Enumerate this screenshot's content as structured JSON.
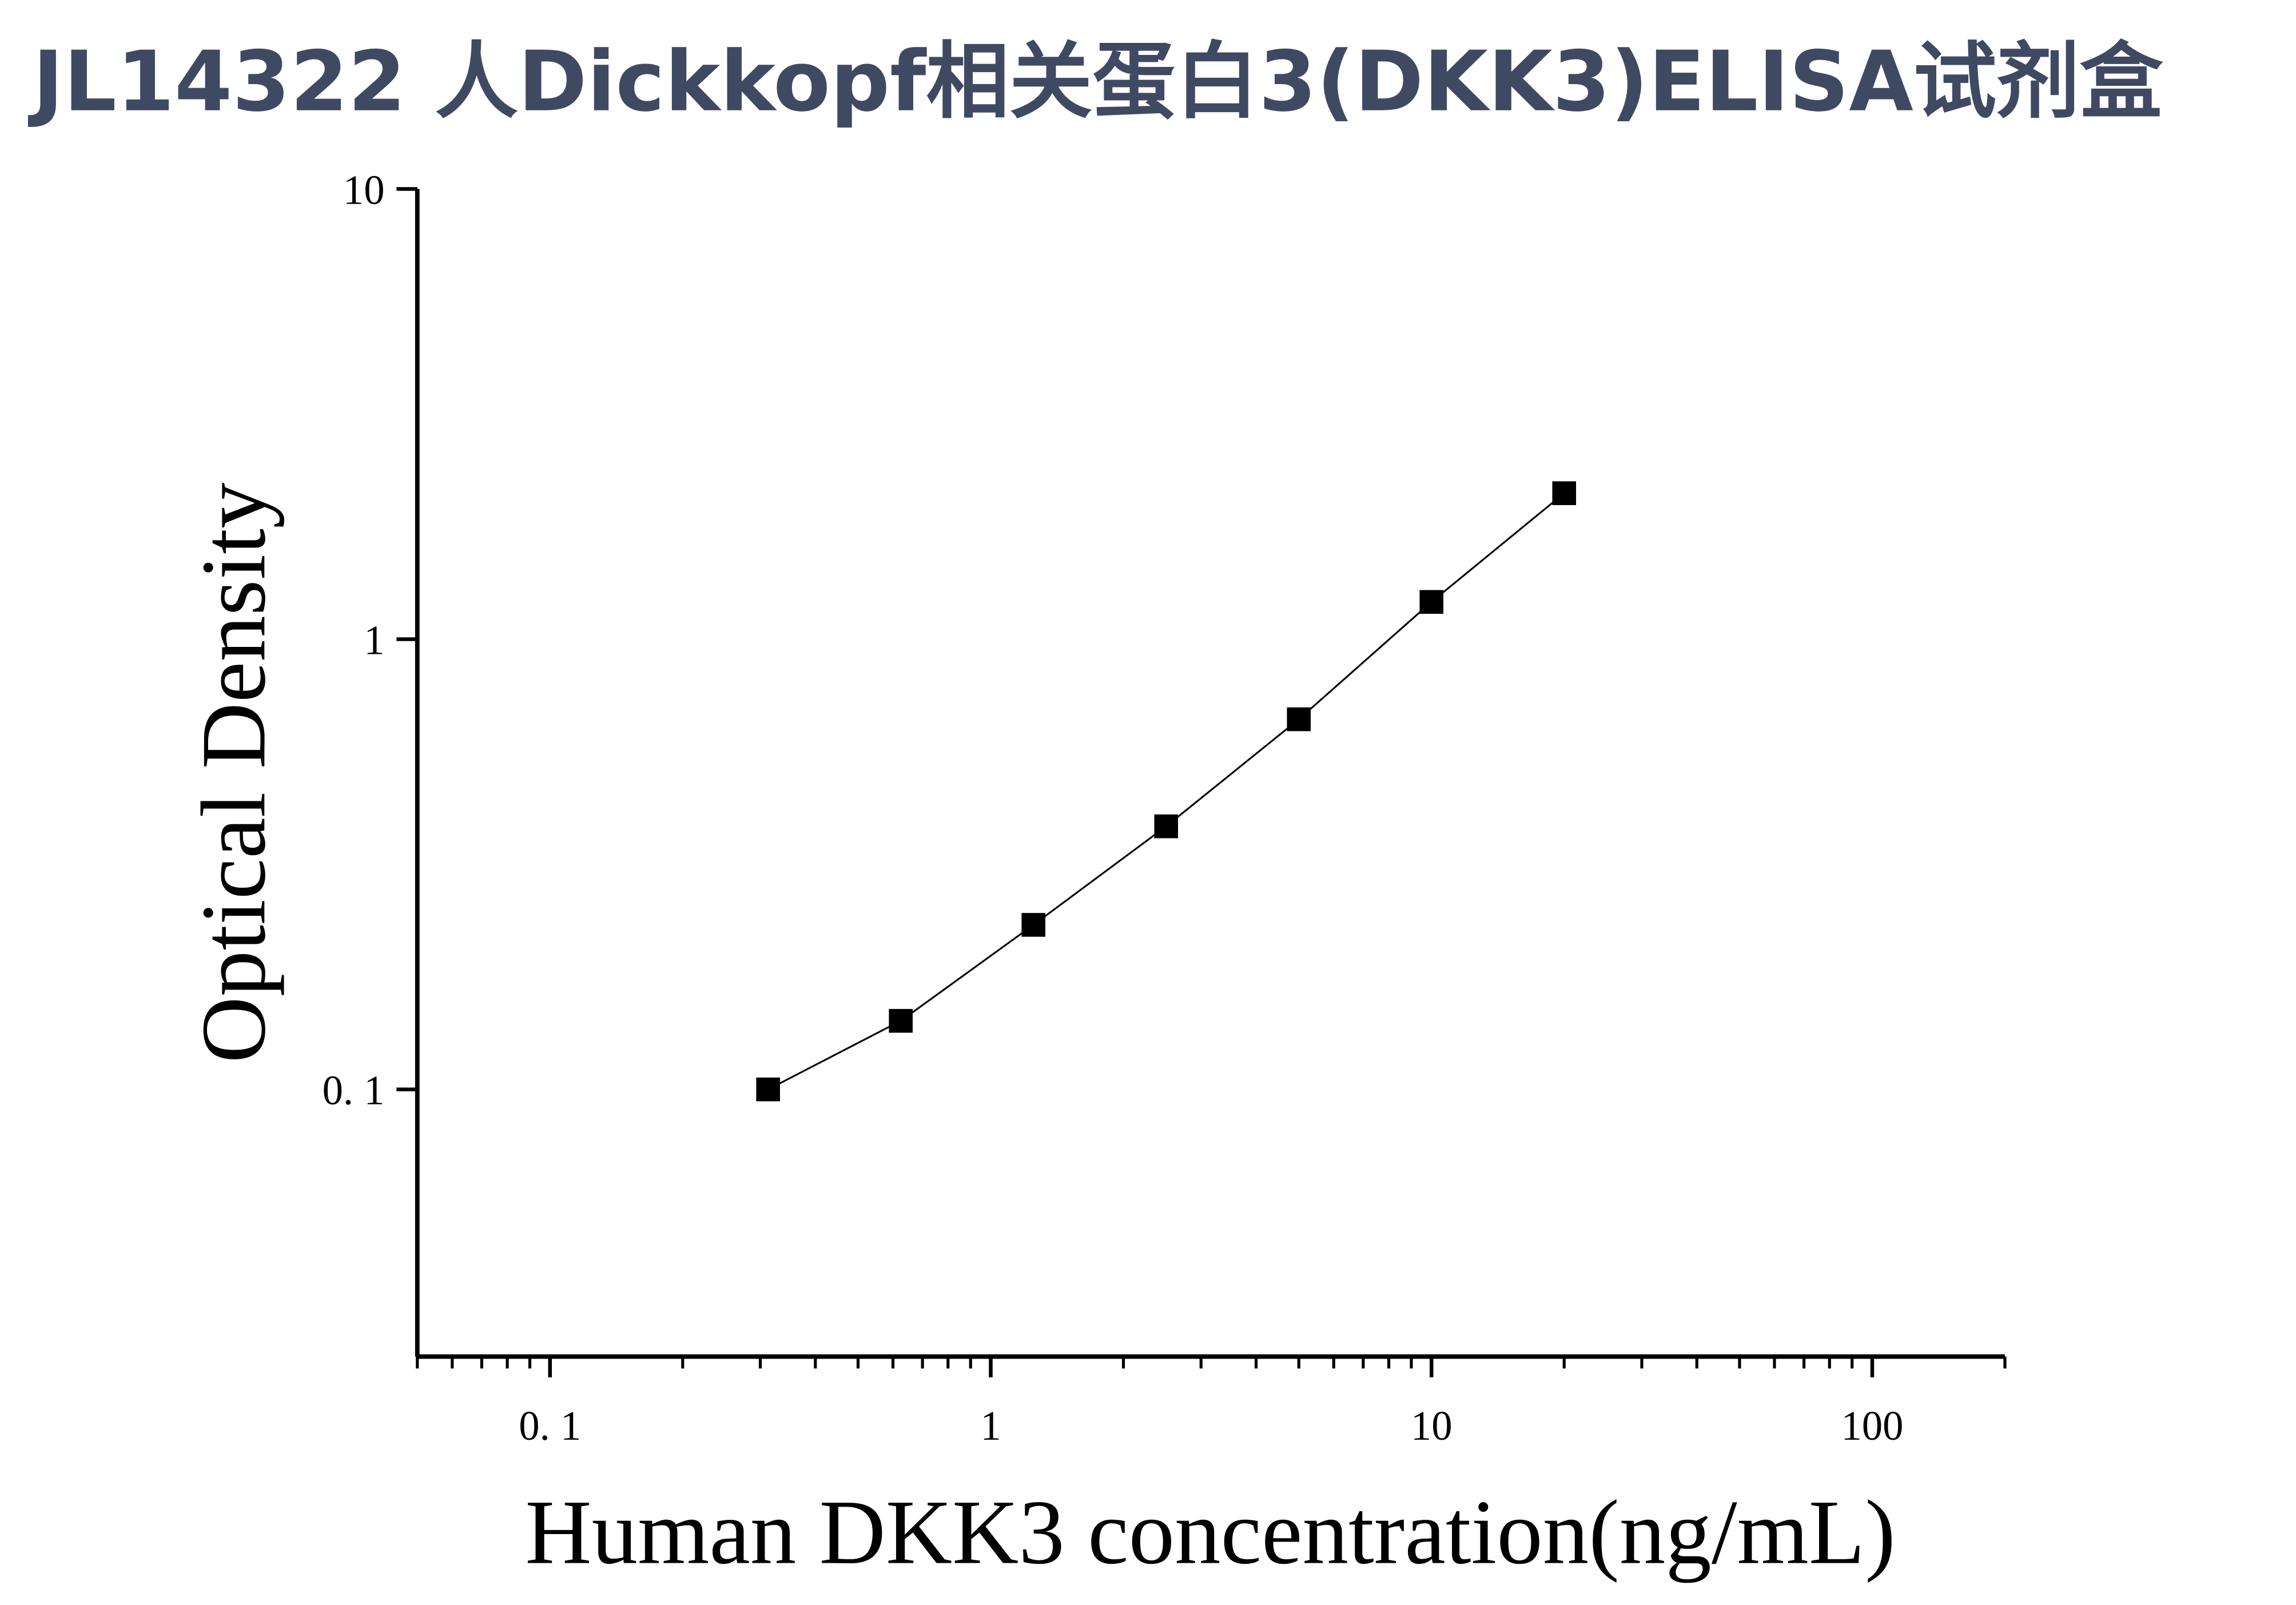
{
  "chart_data": {
    "type": "scatter-line",
    "title": "JL14322 人Dickkopf相关蛋白3(DKK3)ELISA试剂盒",
    "x_label": "Human DKK3 concentration(ng/mL)",
    "y_label": "Optical Density",
    "x": [
      0.3125,
      0.625,
      1.25,
      2.5,
      5,
      10,
      20
    ],
    "series": [
      {
        "color": "#000000",
        "values": [
          0.1,
          0.142,
          0.232,
          0.384,
          0.664,
          1.21,
          2.11
        ]
      }
    ],
    "x_log": true,
    "y_log": true,
    "xlim": [
      0.05,
      200
    ],
    "ylim": [
      0.0255,
      10
    ],
    "xticks": [
      {
        "value": 0.1,
        "label": "0. 1"
      },
      1,
      10,
      100
    ],
    "xminorticks": [
      0.05,
      0.06,
      0.07,
      0.08,
      0.09,
      0.2,
      0.3,
      0.4,
      0.5,
      0.6,
      0.7,
      0.8,
      0.9,
      2,
      3,
      4,
      5,
      6,
      7,
      8,
      9,
      20,
      30,
      40,
      50,
      60,
      70,
      80,
      90,
      200
    ],
    "yticks": [
      {
        "value": 0.1,
        "label": "0. 1"
      },
      1,
      10
    ]
  }
}
